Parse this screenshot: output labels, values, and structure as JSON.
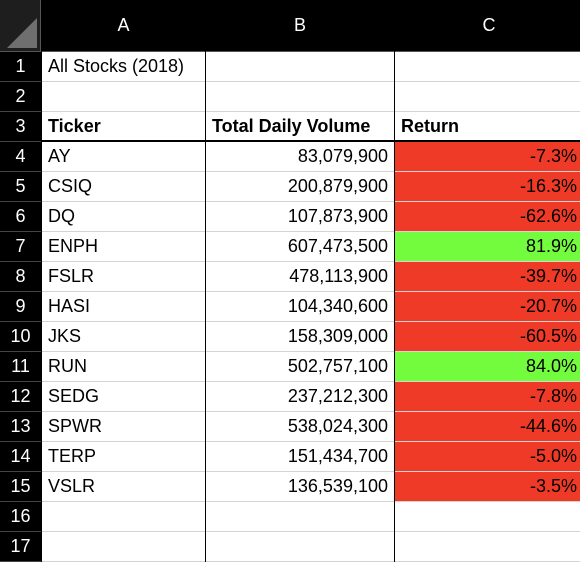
{
  "columns": [
    "A",
    "B",
    "C"
  ],
  "title_cell": "All Stocks (2018)",
  "headers": {
    "ticker": "Ticker",
    "volume": "Total Daily Volume",
    "return": "Return"
  },
  "rows": [
    {
      "row": "4",
      "ticker": "AY",
      "volume": "83,079,900",
      "return": "-7.3%",
      "status": "neg"
    },
    {
      "row": "5",
      "ticker": "CSIQ",
      "volume": "200,879,900",
      "return": "-16.3%",
      "status": "neg"
    },
    {
      "row": "6",
      "ticker": "DQ",
      "volume": "107,873,900",
      "return": "-62.6%",
      "status": "neg"
    },
    {
      "row": "7",
      "ticker": "ENPH",
      "volume": "607,473,500",
      "return": "81.9%",
      "status": "pos"
    },
    {
      "row": "8",
      "ticker": "FSLR",
      "volume": "478,113,900",
      "return": "-39.7%",
      "status": "neg"
    },
    {
      "row": "9",
      "ticker": "HASI",
      "volume": "104,340,600",
      "return": "-20.7%",
      "status": "neg"
    },
    {
      "row": "10",
      "ticker": "JKS",
      "volume": "158,309,000",
      "return": "-60.5%",
      "status": "neg"
    },
    {
      "row": "11",
      "ticker": "RUN",
      "volume": "502,757,100",
      "return": "84.0%",
      "status": "pos"
    },
    {
      "row": "12",
      "ticker": "SEDG",
      "volume": "237,212,300",
      "return": "-7.8%",
      "status": "neg"
    },
    {
      "row": "13",
      "ticker": "SPWR",
      "volume": "538,024,300",
      "return": "-44.6%",
      "status": "neg"
    },
    {
      "row": "14",
      "ticker": "TERP",
      "volume": "151,434,700",
      "return": "-5.0%",
      "status": "neg"
    },
    {
      "row": "15",
      "ticker": "VSLR",
      "volume": "136,539,100",
      "return": "-3.5%",
      "status": "neg"
    }
  ],
  "row_numbers": [
    "1",
    "2",
    "3",
    "16",
    "17"
  ],
  "colors": {
    "negative": "#ef3a28",
    "positive": "#73fb3e"
  }
}
